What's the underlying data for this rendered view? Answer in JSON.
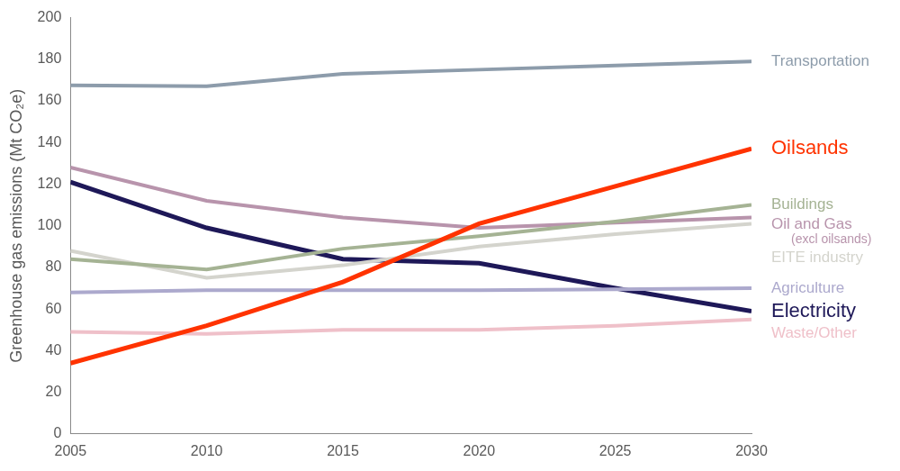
{
  "chart_data": {
    "type": "line",
    "y_label": "Greenhouse gas emissions (Mt CO₂e)",
    "x": [
      2005,
      2010,
      2015,
      2020,
      2025,
      2030
    ],
    "xlim": [
      2005,
      2030
    ],
    "xticks": [
      2005,
      2010,
      2015,
      2020,
      2025,
      2030
    ],
    "ylim": [
      0,
      200
    ],
    "yticks": [
      0,
      20,
      40,
      60,
      80,
      100,
      120,
      140,
      160,
      180,
      200
    ],
    "grid": false,
    "series": [
      {
        "name": "Transportation",
        "color": "#8d9cab",
        "line_style": "solid",
        "values": [
          167.5,
          167,
          173,
          175,
          177,
          179
        ]
      },
      {
        "name": "Oilsands",
        "color": "#ff3300",
        "line_style": "bold",
        "values": [
          34,
          52,
          73,
          101,
          119,
          137
        ]
      },
      {
        "name": "Buildings",
        "color": "#a5b394",
        "line_style": "solid",
        "values": [
          84,
          79,
          89,
          95,
          102,
          110
        ]
      },
      {
        "name": "Oil and Gas (excl oilsands)",
        "color": "#b894ac",
        "line_style": "solid",
        "values": [
          128,
          112,
          104,
          99,
          101.5,
          104
        ]
      },
      {
        "name": "EITE industry",
        "color": "#d4d4cd",
        "line_style": "solid",
        "values": [
          88,
          75,
          81,
          90,
          96,
          101
        ]
      },
      {
        "name": "Agriculture",
        "color": "#aca9cd",
        "line_style": "solid",
        "values": [
          68,
          69,
          69,
          69,
          69.5,
          70
        ]
      },
      {
        "name": "Electricity",
        "color": "#1e1858",
        "line_style": "bold",
        "values": [
          121,
          99,
          84,
          82,
          70,
          59
        ]
      },
      {
        "name": "Waste/Other",
        "color": "#efc0c9",
        "line_style": "solid",
        "values": [
          49,
          48,
          50,
          50,
          52,
          55
        ]
      }
    ]
  }
}
